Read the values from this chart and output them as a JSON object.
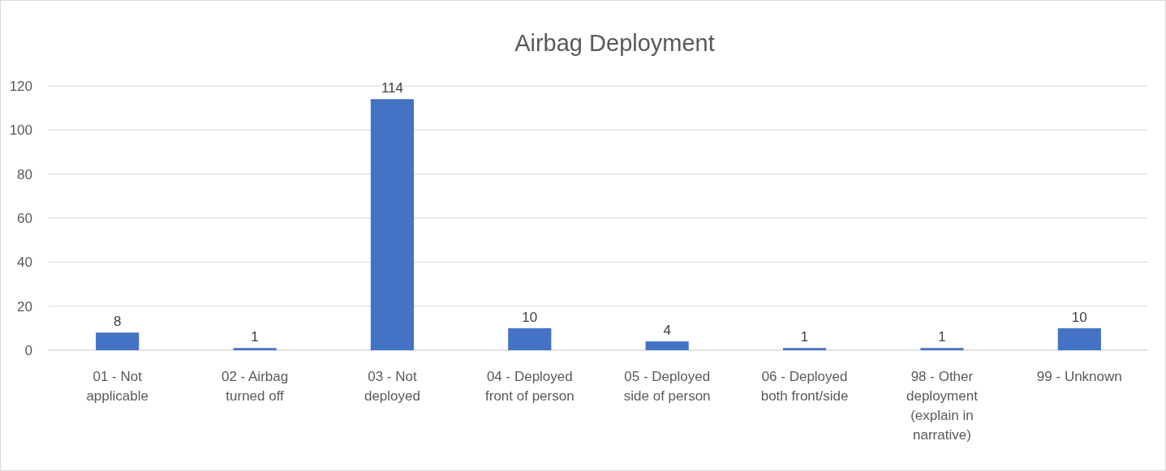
{
  "chart_data": {
    "type": "bar",
    "title": "Airbag Deployment",
    "categories": [
      "01 - Not applicable",
      "02 - Airbag turned off",
      "03 - Not deployed",
      "04 - Deployed front of person",
      "05 - Deployed side of person",
      "06 - Deployed both front/side",
      "98 - Other deployment (explain in narrative)",
      "99 - Unknown"
    ],
    "values": [
      8,
      1,
      114,
      10,
      4,
      1,
      1,
      10
    ],
    "color": "#4472c4",
    "ylim": [
      0,
      120
    ],
    "yticks": [
      0,
      20,
      40,
      60,
      80,
      100,
      120
    ],
    "grid": "y",
    "data_labels": true
  }
}
